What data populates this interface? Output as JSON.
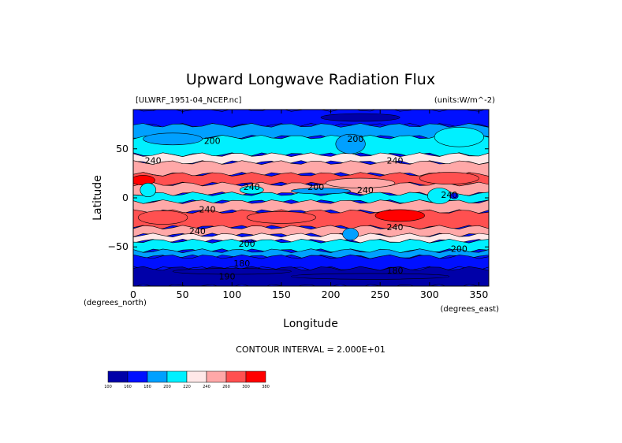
{
  "chart_data": {
    "type": "heatmap",
    "title": "Upward Longwave Radiation Flux",
    "file_label": "[ULWRF_1951-04_NCEP.nc]",
    "units_label": "(units:W/m^-2)",
    "xlabel": "Longitude",
    "ylabel": "Latitude",
    "x_unit_label": "(degrees_east)",
    "y_unit_label": "(degrees_north)",
    "xlim": [
      0,
      360
    ],
    "ylim": [
      -90,
      90
    ],
    "x_ticks": [
      0,
      50,
      100,
      150,
      200,
      250,
      300,
      350
    ],
    "y_ticks": [
      50,
      0,
      -50
    ],
    "contour_interval_text": "CONTOUR INTERVAL = 2.000E+01",
    "contour_labels": [
      {
        "text": "200",
        "lon": 80,
        "lat": 55
      },
      {
        "text": "200",
        "lon": 225,
        "lat": 57
      },
      {
        "text": "240",
        "lon": 20,
        "lat": 35
      },
      {
        "text": "240",
        "lon": 265,
        "lat": 35
      },
      {
        "text": "240",
        "lon": 120,
        "lat": 8
      },
      {
        "text": "200",
        "lon": 185,
        "lat": 8
      },
      {
        "text": "240",
        "lon": 235,
        "lat": 5
      },
      {
        "text": "240",
        "lon": 320,
        "lat": 0
      },
      {
        "text": "240",
        "lon": 75,
        "lat": -15
      },
      {
        "text": "240",
        "lon": 65,
        "lat": -37
      },
      {
        "text": "240",
        "lon": 265,
        "lat": -33
      },
      {
        "text": "200",
        "lon": 115,
        "lat": -50
      },
      {
        "text": "200",
        "lon": 330,
        "lat": -55
      },
      {
        "text": "180",
        "lon": 110,
        "lat": -70
      },
      {
        "text": "180",
        "lon": 265,
        "lat": -77
      },
      {
        "text": "190",
        "lon": 95,
        "lat": -83
      }
    ],
    "colorbar": {
      "levels": [
        "100",
        "160",
        "180",
        "200",
        "220",
        "240",
        "260",
        "300",
        "380"
      ],
      "colors": [
        "#0000a8",
        "#0010ff",
        "#00a0ff",
        "#00f0ff",
        "#ffe8e8",
        "#ffa8a8",
        "#ff5050",
        "#ff0000"
      ]
    }
  }
}
